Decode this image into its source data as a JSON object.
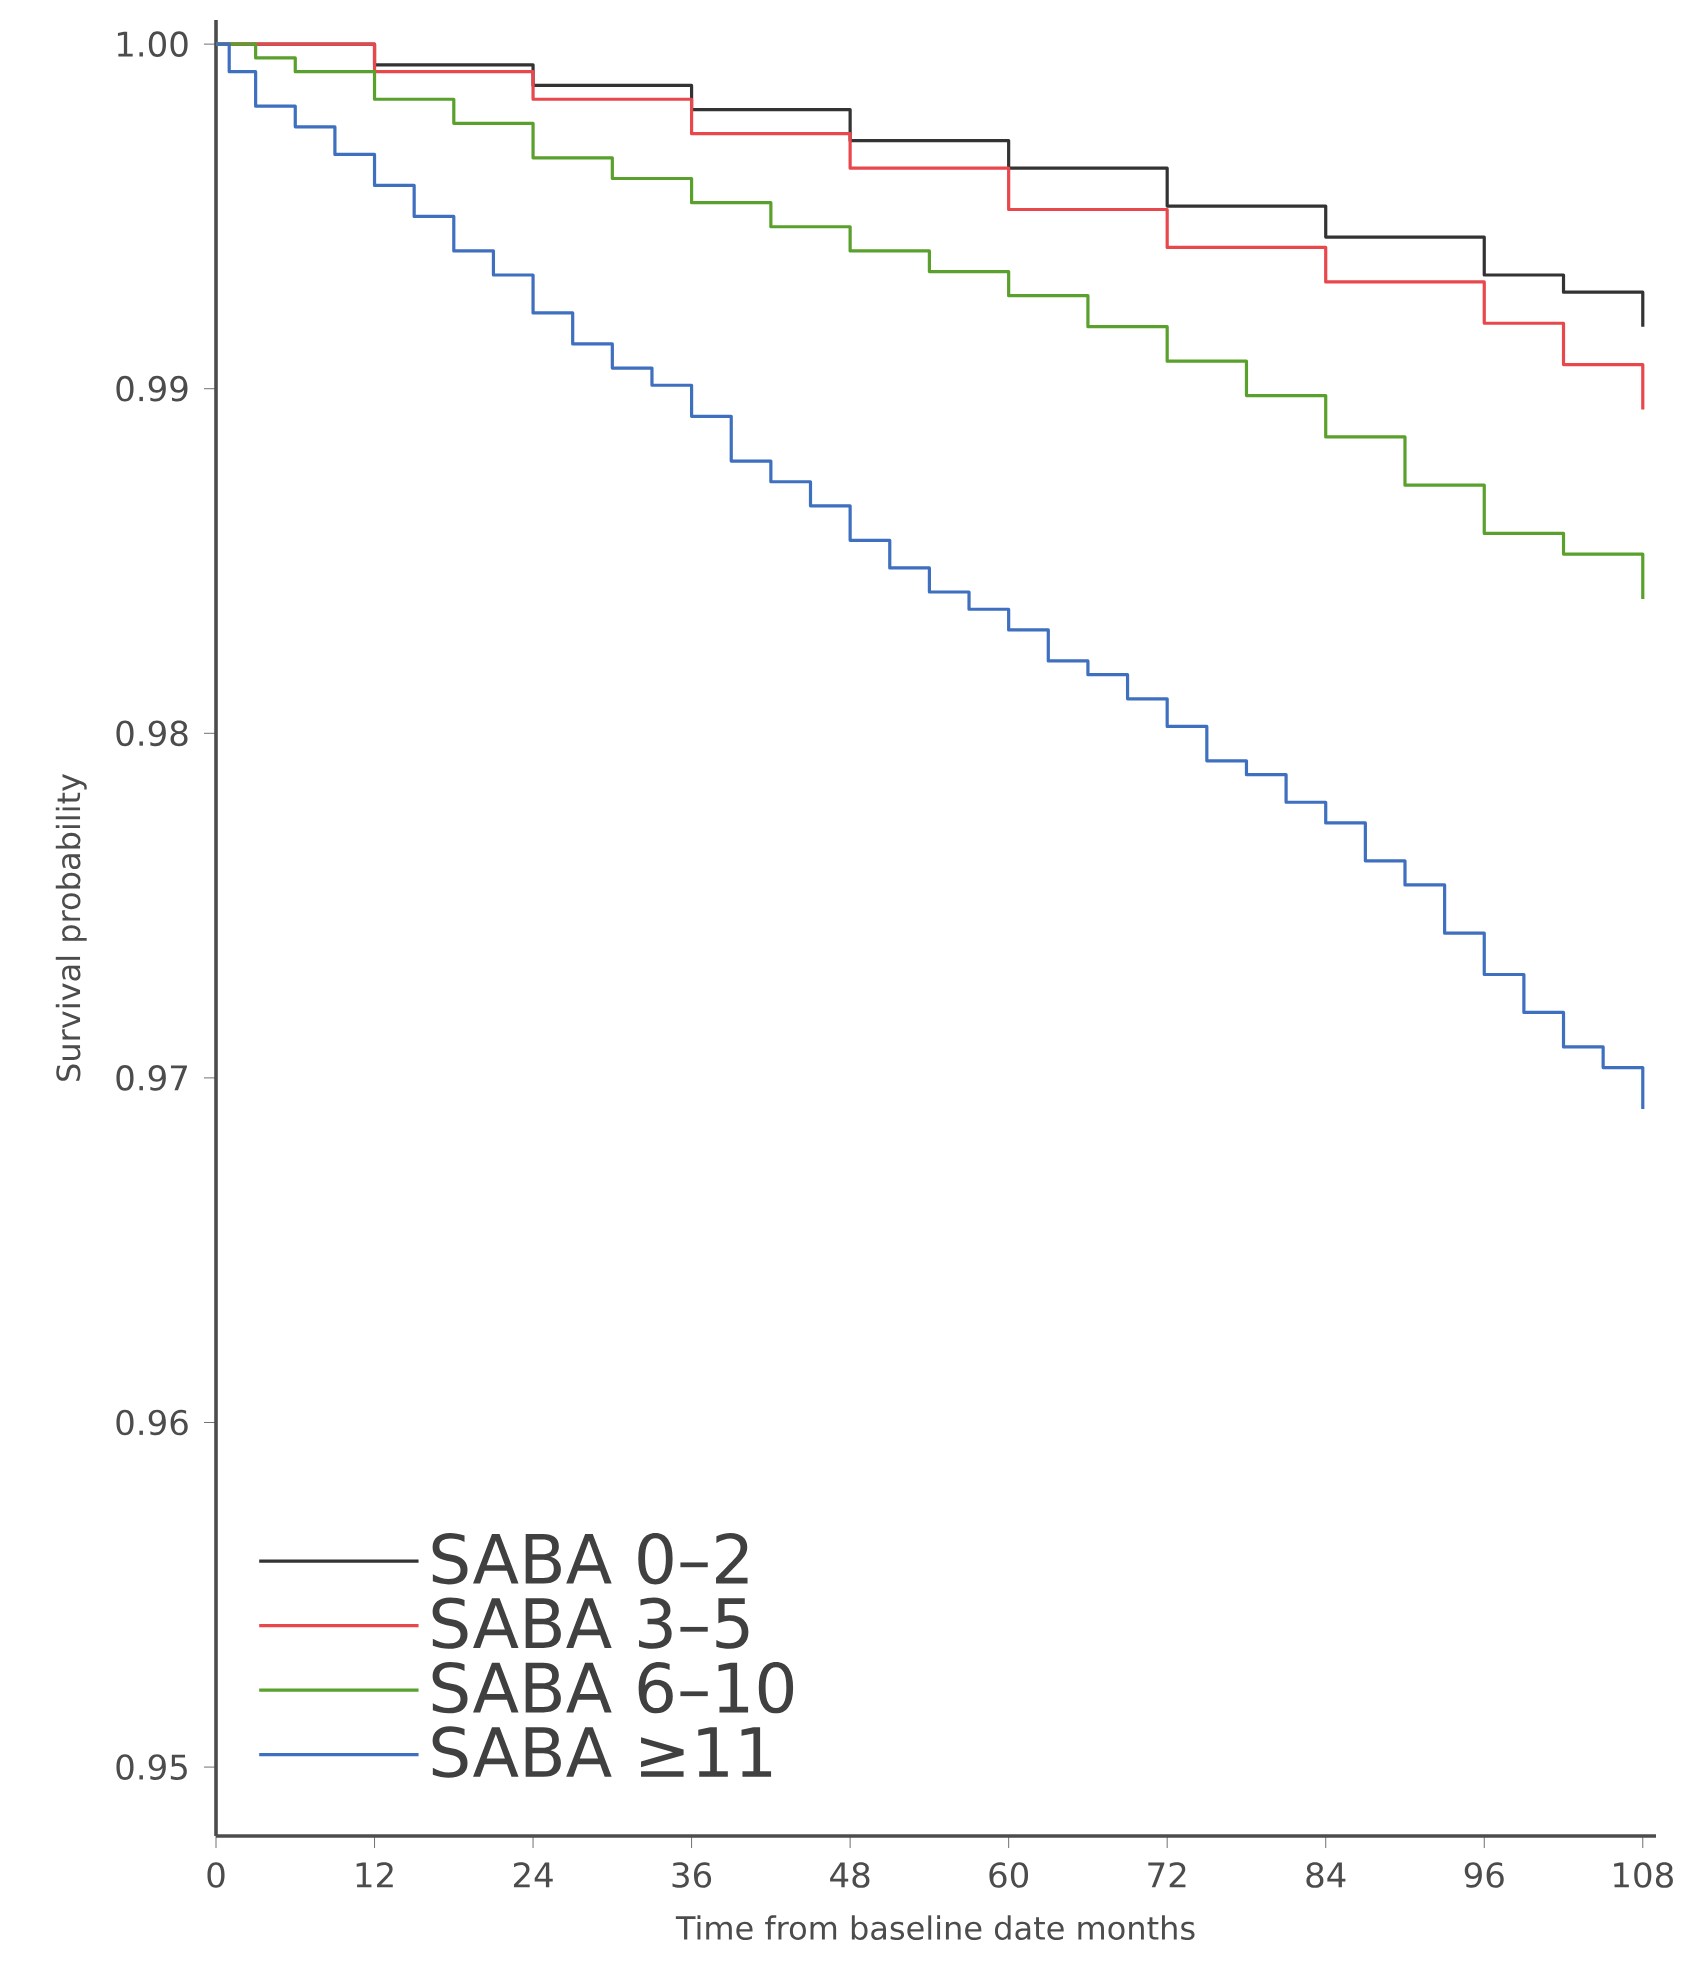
{
  "chart_data": {
    "type": "step",
    "xlabel": "Time from baseline date months",
    "ylabel": "Survival probability",
    "xlim": [
      0,
      109
    ],
    "ylim": [
      0.948,
      1.0007
    ],
    "xticks": [
      0,
      12,
      24,
      36,
      48,
      60,
      72,
      84,
      96,
      108
    ],
    "yticks": [
      {
        "value": 0.95,
        "label": "0.95"
      },
      {
        "value": 0.96,
        "label": "0.96"
      },
      {
        "value": 0.97,
        "label": "0.97"
      },
      {
        "value": 0.98,
        "label": "0.98"
      },
      {
        "value": 0.99,
        "label": "0.99"
      },
      {
        "value": 1.0,
        "label": "1.00"
      }
    ],
    "grid": false,
    "legend": "bottom left",
    "line_style": "solid",
    "marker": "none",
    "series": [
      {
        "name": "SABA 0–2",
        "color": "#333333",
        "x": [
          0,
          12,
          24,
          36,
          48,
          60,
          72,
          84,
          96,
          102,
          108
        ],
        "values": [
          1.0,
          0.9994,
          0.9988,
          0.9981,
          0.9972,
          0.9964,
          0.9953,
          0.9944,
          0.9933,
          0.9928,
          0.9918
        ]
      },
      {
        "name": "SABA 3–5",
        "color": "#e8474c",
        "x": [
          0,
          12,
          24,
          36,
          48,
          60,
          72,
          84,
          96,
          102,
          108
        ],
        "values": [
          1.0,
          0.9992,
          0.9984,
          0.9974,
          0.9964,
          0.9952,
          0.9941,
          0.9931,
          0.9919,
          0.9907,
          0.9894
        ]
      },
      {
        "name": "SABA 6–10",
        "color": "#5aa02c",
        "x": [
          0,
          3,
          6,
          12,
          18,
          24,
          30,
          36,
          42,
          48,
          54,
          60,
          66,
          72,
          78,
          84,
          90,
          96,
          102,
          108
        ],
        "values": [
          1.0,
          0.9996,
          0.9992,
          0.9984,
          0.9977,
          0.9967,
          0.9961,
          0.9954,
          0.9947,
          0.994,
          0.9934,
          0.9927,
          0.9918,
          0.9908,
          0.9898,
          0.9886,
          0.9872,
          0.9858,
          0.9852,
          0.9839
        ]
      },
      {
        "name": "SABA ≥11",
        "color": "#3f6fbf",
        "x": [
          0,
          1,
          3,
          6,
          9,
          12,
          15,
          18,
          21,
          24,
          27,
          30,
          33,
          36,
          39,
          42,
          45,
          48,
          51,
          54,
          57,
          60,
          63,
          66,
          69,
          72,
          75,
          78,
          81,
          84,
          87,
          90,
          93,
          96,
          99,
          102,
          105,
          108
        ],
        "values": [
          1.0,
          0.9992,
          0.9982,
          0.9976,
          0.9968,
          0.9959,
          0.995,
          0.994,
          0.9933,
          0.9922,
          0.9913,
          0.9906,
          0.9901,
          0.9892,
          0.9879,
          0.9873,
          0.9866,
          0.9856,
          0.9848,
          0.9841,
          0.9836,
          0.983,
          0.9821,
          0.9817,
          0.981,
          0.9802,
          0.9792,
          0.9788,
          0.978,
          0.9774,
          0.9763,
          0.9756,
          0.9742,
          0.973,
          0.9719,
          0.9709,
          0.9703,
          0.9691
        ]
      }
    ]
  }
}
